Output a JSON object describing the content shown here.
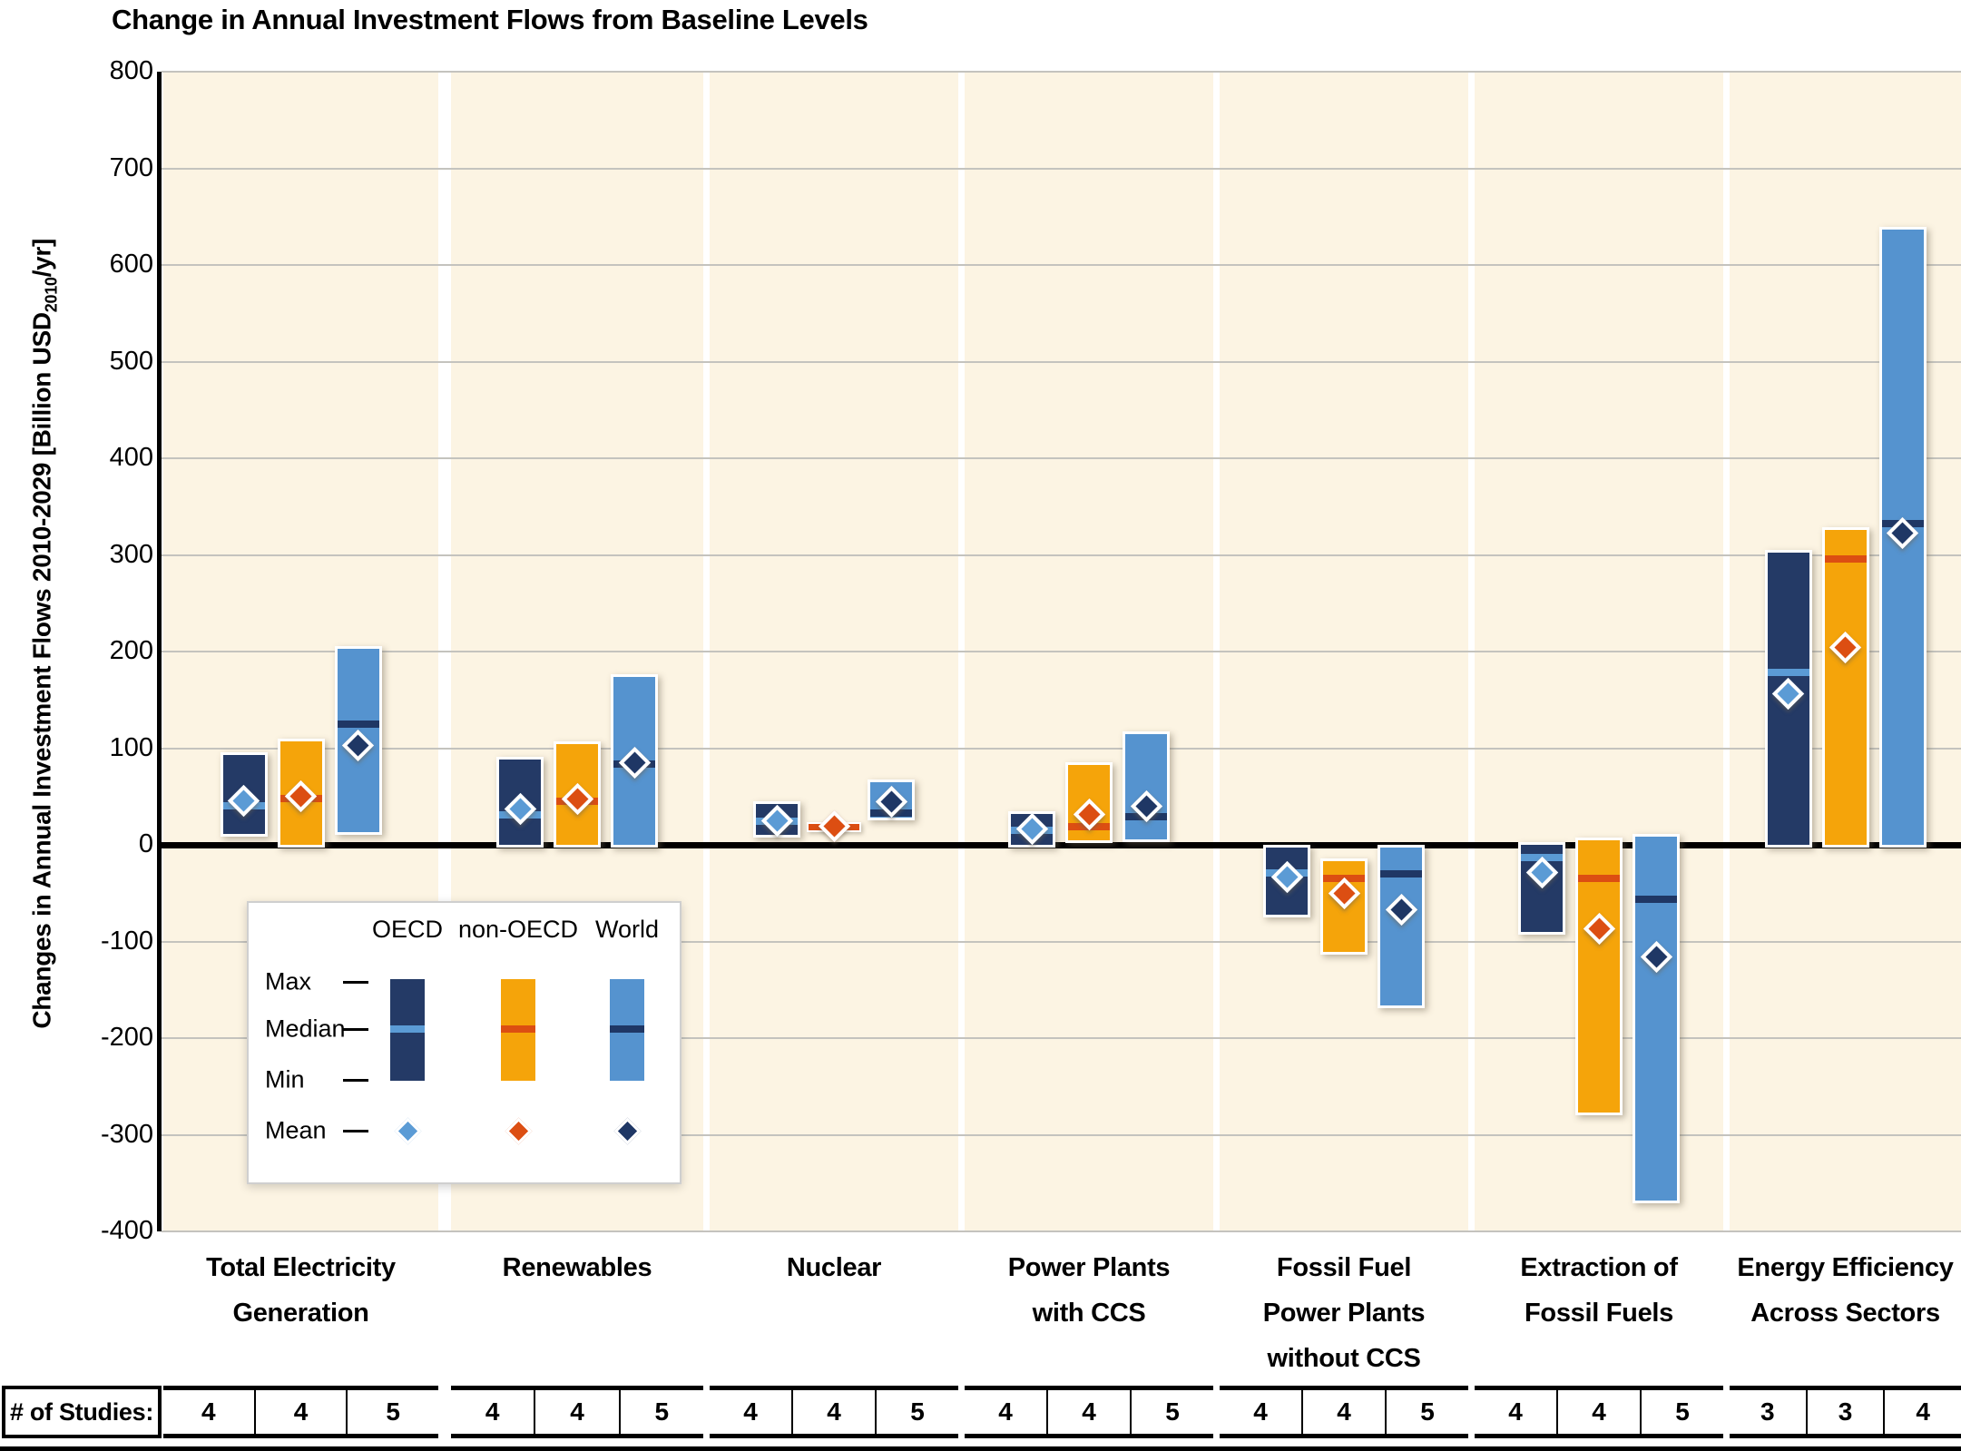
{
  "title": "Change in Annual Investment Flows from Baseline Levels",
  "y_axis": {
    "label_prefix": "Changes in Annual Investment Flows 2010-2029 [Billion USD",
    "label_subscript": "2010",
    "label_suffix": "/yr]"
  },
  "studies_row_label": "# of Studies:",
  "colors": {
    "panel_background": "#FCF4E3",
    "gridline": "#C4C3BE",
    "zero_line": "#000000",
    "oecd_bar": "#243A66",
    "oecd_median": "#5B9BD5",
    "oecd_mean": "#5B9BD5",
    "non_oecd_bar": "#F5A40A",
    "non_oecd_median": "#DC4E12",
    "non_oecd_mean": "#DC4E12",
    "world_bar": "#5593CF",
    "world_median": "#1F3765",
    "world_mean": "#1F3765"
  },
  "chart_data": {
    "type": "box-range",
    "title": "Change in Annual Investment Flows from Baseline Levels",
    "ylabel": "Changes in Annual Investment Flows 2010-2029 [Billion USD2010/yr]",
    "ylim": [
      -400,
      800
    ],
    "ytick_step": 100,
    "grid": true,
    "unit": "Billion USD2010/yr",
    "legend_position": "inside-lower-left",
    "legend_rows": [
      "Max",
      "Median",
      "Min",
      "Mean"
    ],
    "series": [
      {
        "name": "OECD",
        "bar_color": "#243A66",
        "median_color": "#5B9BD5",
        "mean_color": "#5B9BD5"
      },
      {
        "name": "non-OECD",
        "bar_color": "#F5A40A",
        "median_color": "#DC4E12",
        "mean_color": "#DC4E12"
      },
      {
        "name": "World",
        "bar_color": "#5593CF",
        "median_color": "#1F3765",
        "mean_color": "#1F3765"
      }
    ],
    "groups": [
      {
        "label_lines": [
          "Total Electricity",
          "Generation"
        ],
        "studies": [
          4,
          4,
          5
        ],
        "values": [
          {
            "min": 11,
            "max": 93,
            "median": 40,
            "mean": 46
          },
          {
            "min": 0,
            "max": 107,
            "median": 48,
            "mean": 50
          },
          {
            "min": 13,
            "max": 203,
            "median": 125,
            "mean": 103
          }
        ]
      },
      {
        "label_lines": [
          "Renewables"
        ],
        "studies": [
          4,
          4,
          5
        ],
        "values": [
          {
            "min": 0,
            "max": 88,
            "median": 31,
            "mean": 37
          },
          {
            "min": 0,
            "max": 104,
            "median": 45,
            "mean": 47
          },
          {
            "min": 0,
            "max": 174,
            "median": 84,
            "mean": 85
          }
        ]
      },
      {
        "label_lines": [
          "Nuclear"
        ],
        "studies": [
          4,
          4,
          5
        ],
        "values": [
          {
            "min": 10,
            "max": 42,
            "median": 24,
            "mean": 25
          },
          {
            "min": 17,
            "max": 21,
            "median": 19,
            "mean": 19
          },
          {
            "min": 28,
            "max": 65,
            "median": 33,
            "mean": 45
          }
        ]
      },
      {
        "label_lines": [
          "Power Plants",
          "with CCS"
        ],
        "studies": [
          4,
          4,
          5
        ],
        "values": [
          {
            "min": 0,
            "max": 32,
            "median": 15,
            "mean": 16
          },
          {
            "min": 5,
            "max": 83,
            "median": 19,
            "mean": 31
          },
          {
            "min": 6,
            "max": 115,
            "median": 29,
            "mean": 40
          }
        ]
      },
      {
        "label_lines": [
          "Fossil Fuel",
          "Power Plants",
          "without CCS"
        ],
        "studies": [
          4,
          4,
          5
        ],
        "values": [
          {
            "min": -72,
            "max": -3,
            "median": -29,
            "mean": -33
          },
          {
            "min": -111,
            "max": -17,
            "median": -35,
            "mean": -50
          },
          {
            "min": -166,
            "max": -3,
            "median": -30,
            "mean": -67
          }
        ]
      },
      {
        "label_lines": [
          "Extraction of",
          "Fossil Fuels"
        ],
        "studies": [
          4,
          4,
          5
        ],
        "values": [
          {
            "min": -90,
            "max": 0,
            "median": -13,
            "mean": -29
          },
          {
            "min": -277,
            "max": 5,
            "median": -35,
            "mean": -87
          },
          {
            "min": -368,
            "max": 8,
            "median": -56,
            "mean": -116
          }
        ]
      },
      {
        "label_lines": [
          "Energy Efficiency",
          "Across Sectors"
        ],
        "studies": [
          3,
          3,
          4
        ],
        "values": [
          {
            "min": 0,
            "max": 302,
            "median": 178,
            "mean": 156
          },
          {
            "min": 0,
            "max": 326,
            "median": 296,
            "mean": 204
          },
          {
            "min": 0,
            "max": 637,
            "median": 332,
            "mean": 323
          }
        ]
      }
    ]
  }
}
